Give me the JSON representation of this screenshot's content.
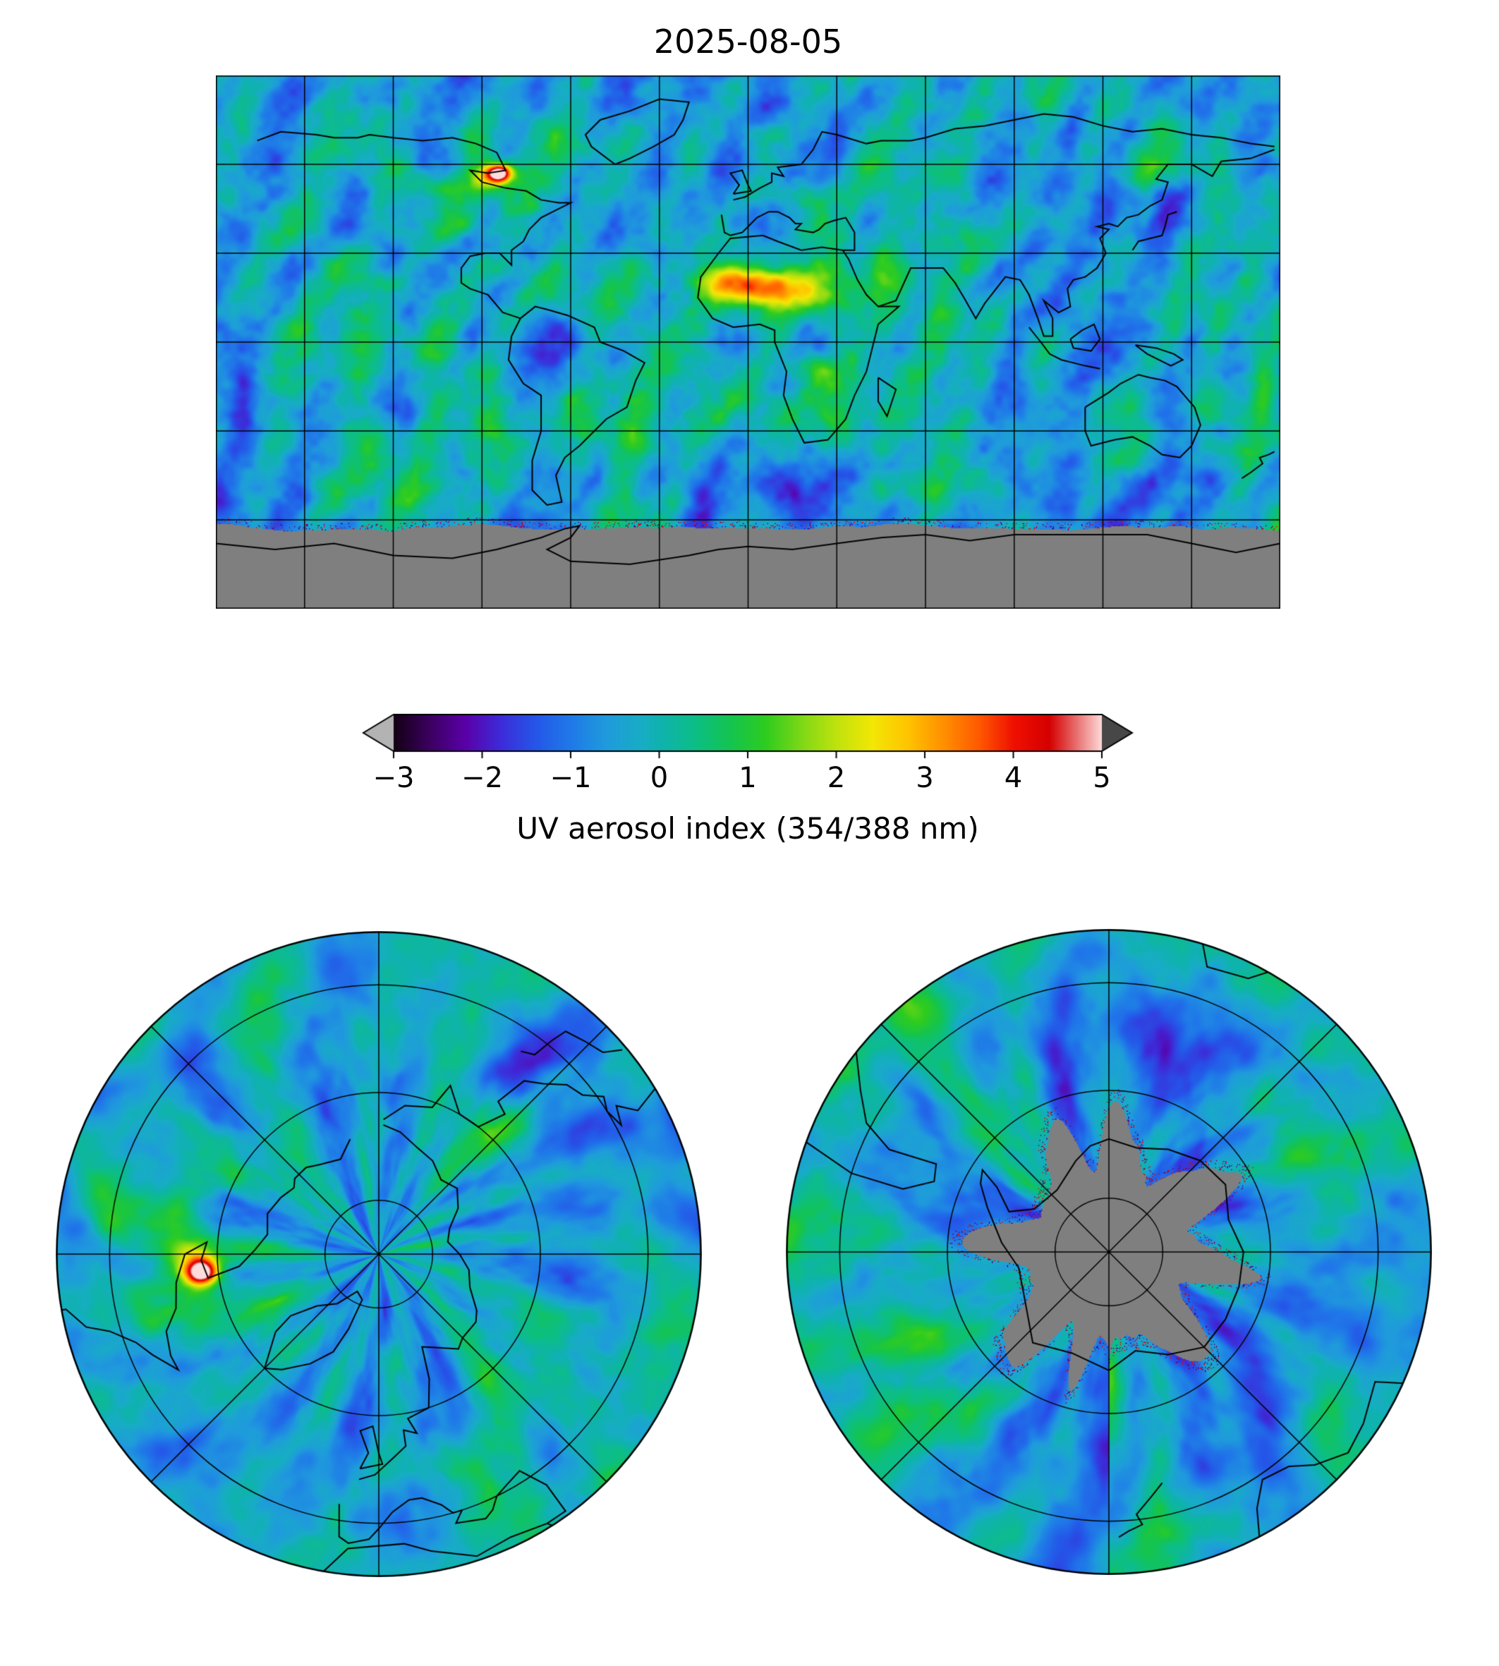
{
  "figure": {
    "title": "2025-08-05",
    "colorbar": {
      "label": "UV aerosol index (354/388 nm)",
      "ticks": [
        "−3",
        "−2",
        "−1",
        "0",
        "1",
        "2",
        "3",
        "4",
        "5"
      ],
      "min": -3,
      "max": 5,
      "under_arrow_color": "#b3b3b3",
      "over_arrow_color": "#474747",
      "no_data_color": "#7f7f7f",
      "colormap_stops": [
        [
          -3.0,
          "#140014"
        ],
        [
          -2.6,
          "#3c0060"
        ],
        [
          -2.2,
          "#5a00a8"
        ],
        [
          -1.8,
          "#3d2bd9"
        ],
        [
          -1.4,
          "#2457e8"
        ],
        [
          -1.0,
          "#1f7ae8"
        ],
        [
          -0.6,
          "#1f9bdc"
        ],
        [
          -0.2,
          "#17adc4"
        ],
        [
          0.0,
          "#0fb2ae"
        ],
        [
          0.4,
          "#0cbe86"
        ],
        [
          0.8,
          "#14c44e"
        ],
        [
          1.2,
          "#2ecc1f"
        ],
        [
          1.6,
          "#7ed816"
        ],
        [
          2.0,
          "#c0e20d"
        ],
        [
          2.4,
          "#f2e705"
        ],
        [
          2.8,
          "#ffc400"
        ],
        [
          3.2,
          "#ff9000"
        ],
        [
          3.6,
          "#ff5a00"
        ],
        [
          4.0,
          "#f01000"
        ],
        [
          4.4,
          "#d40000"
        ],
        [
          4.7,
          "#e86a6a"
        ],
        [
          5.0,
          "#ffdcdc"
        ]
      ]
    },
    "panels": [
      {
        "id": "global-map",
        "projection": "equirectangular (global)",
        "gridline_spacing_deg": 30
      },
      {
        "id": "north-polar-map",
        "projection": "north polar stereographic",
        "latitude_limit": "30°N to 90°N"
      },
      {
        "id": "south-polar-map",
        "projection": "south polar stereographic",
        "latitude_limit": "30°S to 90°S"
      }
    ]
  },
  "chart_data": {
    "type": "heatmap",
    "title": "2025-08-05",
    "value_label": "UV aerosol index (354/388 nm)",
    "value_range": [
      -3,
      5
    ],
    "colorbar_ticks": [
      -3,
      -2,
      -1,
      0,
      1,
      2,
      3,
      4,
      5
    ],
    "colormap": "black–purple–blue–teal–green–yellow–orange–red–pale pink, gray arrows for out-of-range",
    "no_data_color": "gray",
    "no_data_regions": [
      "Antarctica / high southern latitudes (polar night)"
    ],
    "background_pattern": "diagonal satellite swath stripes; background index mostly −1.5 to +0.5 (blue to teal) over oceans",
    "grid": true,
    "panels": [
      "global equirectangular map",
      "north polar stereographic",
      "south polar stereographic"
    ],
    "features": [
      {
        "region": "eastern Canada wildfire smoke plume",
        "approx_lon": -84,
        "approx_lat": 57,
        "peak_value": 5
      },
      {
        "region": "Sahara / Sahel dust plume (West Africa)",
        "approx_lon": 5,
        "approx_lat": 18,
        "peak_value": 3
      },
      {
        "region": "Arabian Peninsula dust",
        "approx_lon": 46,
        "approx_lat": 24,
        "peak_value": 2
      },
      {
        "region": "central / east Asia aerosol band",
        "approx_lon": 98,
        "approx_lat": 42,
        "peak_value": 1.5
      },
      {
        "region": "southern Africa biomass burning",
        "approx_lon": 25,
        "approx_lat": -9,
        "peak_value": 2
      },
      {
        "region": "Europe weak enhancement",
        "approx_lon": 15,
        "approx_lat": 49,
        "peak_value": 1
      },
      {
        "region": "scattered purple/red retrieval speckles along Antarctic data edge",
        "peak_value": 4
      }
    ]
  }
}
